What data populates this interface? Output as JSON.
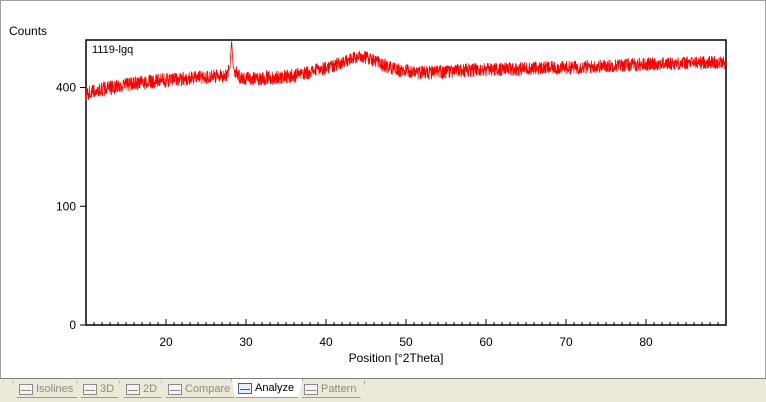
{
  "chart_data": {
    "type": "line",
    "ylabel": "Counts",
    "xlabel": "Position [°2Theta]",
    "series_label": "1119-lgq",
    "xlim": [
      10,
      90
    ],
    "yscale": "sqrt",
    "ylim": [
      0,
      576
    ],
    "x_ticks": [
      20,
      30,
      40,
      50,
      60,
      70,
      80
    ],
    "x_tick_labels": [
      "20",
      "30",
      "40",
      "50",
      "60",
      "70",
      "80"
    ],
    "y_ticks": [
      0,
      100,
      400
    ],
    "y_tick_labels": [
      "0",
      "100",
      "400"
    ],
    "color": "#ff0000",
    "trend": [
      {
        "x": 10.0,
        "y": 380
      },
      {
        "x": 12.0,
        "y": 393
      },
      {
        "x": 14.0,
        "y": 405
      },
      {
        "x": 16.0,
        "y": 413
      },
      {
        "x": 18.0,
        "y": 420
      },
      {
        "x": 20.0,
        "y": 425
      },
      {
        "x": 22.0,
        "y": 430
      },
      {
        "x": 24.0,
        "y": 435
      },
      {
        "x": 26.0,
        "y": 438
      },
      {
        "x": 27.5,
        "y": 442
      },
      {
        "x": 28.0,
        "y": 470
      },
      {
        "x": 28.2,
        "y": 576
      },
      {
        "x": 28.4,
        "y": 470
      },
      {
        "x": 29.0,
        "y": 440
      },
      {
        "x": 30.0,
        "y": 430
      },
      {
        "x": 32.0,
        "y": 432
      },
      {
        "x": 34.0,
        "y": 435
      },
      {
        "x": 36.0,
        "y": 440
      },
      {
        "x": 38.0,
        "y": 455
      },
      {
        "x": 40.0,
        "y": 470
      },
      {
        "x": 42.0,
        "y": 488
      },
      {
        "x": 43.5,
        "y": 505
      },
      {
        "x": 44.5,
        "y": 512
      },
      {
        "x": 45.5,
        "y": 505
      },
      {
        "x": 47.0,
        "y": 480
      },
      {
        "x": 49.0,
        "y": 460
      },
      {
        "x": 51.0,
        "y": 455
      },
      {
        "x": 53.0,
        "y": 452
      },
      {
        "x": 55.0,
        "y": 455
      },
      {
        "x": 57.0,
        "y": 460
      },
      {
        "x": 60.0,
        "y": 462
      },
      {
        "x": 63.0,
        "y": 465
      },
      {
        "x": 66.0,
        "y": 468
      },
      {
        "x": 70.0,
        "y": 470
      },
      {
        "x": 73.0,
        "y": 473
      },
      {
        "x": 76.0,
        "y": 478
      },
      {
        "x": 80.0,
        "y": 483
      },
      {
        "x": 83.0,
        "y": 485
      },
      {
        "x": 86.0,
        "y": 488
      },
      {
        "x": 88.0,
        "y": 490
      },
      {
        "x": 90.0,
        "y": 488
      }
    ],
    "noise_amplitude": 25,
    "grid": false,
    "legend": "none"
  },
  "tabs": [
    {
      "label": "Isolines",
      "active": false
    },
    {
      "label": "3D",
      "active": false
    },
    {
      "label": "2D",
      "active": false
    },
    {
      "label": "Compare",
      "active": false
    },
    {
      "label": "Analyze",
      "active": true
    },
    {
      "label": "Pattern",
      "active": false
    }
  ]
}
